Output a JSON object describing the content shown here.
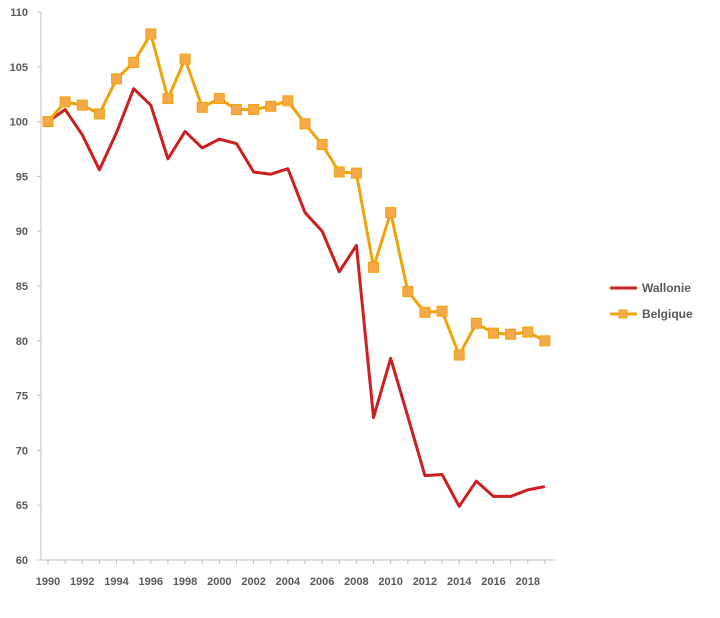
{
  "chart_data": {
    "type": "line",
    "x": [
      1990,
      1991,
      1992,
      1993,
      1994,
      1995,
      1996,
      1997,
      1998,
      1999,
      2000,
      2001,
      2002,
      2003,
      2004,
      2005,
      2006,
      2007,
      2008,
      2009,
      2010,
      2011,
      2012,
      2013,
      2014,
      2015,
      2016,
      2017,
      2018,
      2019
    ],
    "x_tick_labels": [
      "1990",
      "1992",
      "1994",
      "1996",
      "1998",
      "2000",
      "2002",
      "2004",
      "2006",
      "2008",
      "2010",
      "2012",
      "2014",
      "2016",
      "2018"
    ],
    "ylim": [
      60,
      110
    ],
    "y_ticks": [
      "60",
      "65",
      "70",
      "75",
      "80",
      "85",
      "90",
      "95",
      "100",
      "105",
      "110"
    ],
    "grid": false,
    "legend_position": "right",
    "series": [
      {
        "name": "Wallonie",
        "color": "#cc1f1f",
        "marker": "none",
        "values": [
          100,
          101.1,
          98.8,
          95.6,
          99.0,
          103.0,
          101.5,
          96.6,
          99.1,
          97.6,
          98.4,
          98.0,
          95.4,
          95.2,
          95.7,
          91.7,
          90.0,
          86.3,
          88.7,
          73.0,
          78.4,
          73.1,
          67.7,
          67.8,
          64.9,
          67.2,
          65.8,
          65.8,
          66.4,
          66.7
        ]
      },
      {
        "name": "Belgique",
        "color": "#f0a30a",
        "marker": "square",
        "marker_color": "#f5a94a",
        "values": [
          100,
          101.8,
          101.5,
          100.7,
          103.9,
          105.4,
          108.0,
          102.1,
          105.7,
          101.3,
          102.1,
          101.1,
          101.1,
          101.4,
          101.9,
          99.8,
          97.9,
          95.4,
          95.3,
          86.7,
          91.7,
          84.5,
          82.6,
          82.7,
          78.7,
          81.6,
          80.7,
          80.6,
          80.8,
          80.0
        ]
      }
    ]
  }
}
